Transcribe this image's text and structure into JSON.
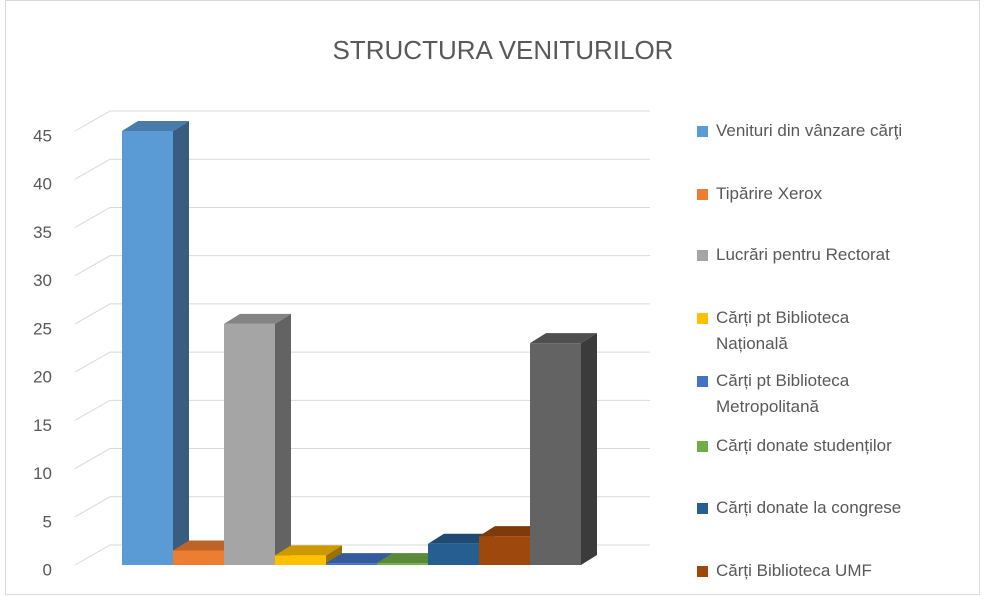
{
  "chart_data": {
    "type": "bar3d",
    "title": "STRUCTURA VENITURILOR",
    "series": [
      {
        "name": "Venituri din vânzare cărţi",
        "color": "#5b9bd5",
        "values": [
          45
        ]
      },
      {
        "name": "Tipărire Xerox",
        "color": "#ed7d31",
        "values": [
          1.5
        ]
      },
      {
        "name": "Lucrări pentru Rectorat",
        "color": "#a5a5a5",
        "values": [
          25
        ]
      },
      {
        "name": "Cărți pt Biblioteca Națională",
        "color": "#ffc000",
        "values": [
          1
        ]
      },
      {
        "name": "Cărți pt Biblioteca Metropolitană",
        "color": "#4472c4",
        "values": [
          0.2
        ]
      },
      {
        "name": "Cărți donate studenților",
        "color": "#70ad47",
        "values": [
          0.2
        ]
      },
      {
        "name": "Cărți donate la congrese",
        "color": "#255e91",
        "values": [
          2.2
        ]
      },
      {
        "name": "Cărți Biblioteca UMF",
        "color": "#9e480e",
        "values": [
          3
        ]
      },
      {
        "name": null,
        "color": "#636363",
        "values": [
          23
        ]
      }
    ],
    "ylim": [
      0,
      45
    ],
    "yticks": [
      0,
      5,
      10,
      15,
      20,
      25,
      30,
      35,
      40,
      45
    ],
    "grid": true,
    "legend": "right"
  }
}
